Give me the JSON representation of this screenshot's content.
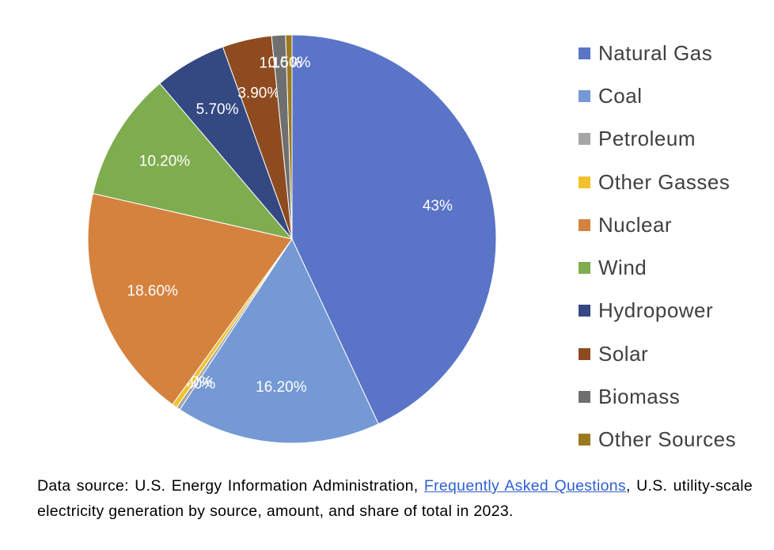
{
  "chart_data": {
    "type": "pie",
    "title": "",
    "slices": [
      {
        "name": "Natural Gas",
        "value": 43.0,
        "label": "43%",
        "color": "#5a74c7"
      },
      {
        "name": "Coal",
        "value": 16.2,
        "label": "16.20%",
        "color": "#7499d4"
      },
      {
        "name": "Petroleum",
        "value": 0.3,
        "label": "0.30%",
        "color": "#a6a6a6"
      },
      {
        "name": "Other Gasses",
        "value": 0.4,
        "label": "0.40%",
        "color": "#f2c12e"
      },
      {
        "name": "Nuclear",
        "value": 18.6,
        "label": "18.60%",
        "color": "#d5823f"
      },
      {
        "name": "Wind",
        "value": 10.2,
        "label": "10.20%",
        "color": "#7fac4f"
      },
      {
        "name": "Hydropower",
        "value": 5.7,
        "label": "5.70%",
        "color": "#344882"
      },
      {
        "name": "Solar",
        "value": 3.9,
        "label": "3.90%",
        "color": "#8e4b1f"
      },
      {
        "name": "Biomass",
        "value": 1.1,
        "label": "1.10%",
        "color": "#6f6f6f"
      },
      {
        "name": "Other Sources",
        "value": 0.5,
        "label": "0.50%",
        "color": "#9b7a1f"
      }
    ],
    "legend": [
      "Natural Gas",
      "Coal",
      "Petroleum",
      "Other Gasses",
      "Nuclear",
      "Wind",
      "Hydropower",
      "Solar",
      "Biomass",
      "Other Sources"
    ],
    "legend_position": "right"
  },
  "footnote": {
    "prefix": "Data source: U.S. Energy Information Administration, ",
    "link_text": "Frequently Asked Questions",
    "suffix": ", U.S. utility-scale electricity generation by source, amount, and share of total in 2023."
  }
}
